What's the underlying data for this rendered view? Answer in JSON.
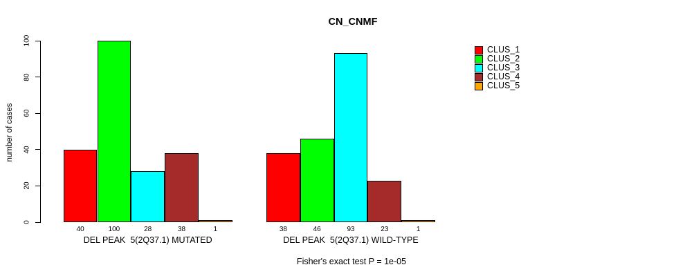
{
  "chart_data": {
    "type": "bar",
    "title": "CN_CNMF",
    "xlabel": "",
    "ylabel": "number of cases",
    "ylim": [
      0,
      100
    ],
    "yticks": [
      0,
      20,
      40,
      60,
      80,
      100
    ],
    "grid": false,
    "legend_position": "right-outside",
    "bar_value_labels": true,
    "categories": [
      "DEL PEAK  5(2Q37.1) MUTATED",
      "DEL PEAK  5(2Q37.1) WILD-TYPE"
    ],
    "series": [
      {
        "name": "CLUS_1",
        "color": "#FF0000",
        "values": [
          40,
          38
        ]
      },
      {
        "name": "CLUS_2",
        "color": "#00FF00",
        "values": [
          100,
          46
        ]
      },
      {
        "name": "CLUS_3",
        "color": "#00FFFF",
        "values": [
          28,
          93
        ]
      },
      {
        "name": "CLUS_4",
        "color": "#A52A2A",
        "values": [
          38,
          23
        ]
      },
      {
        "name": "CLUS_5",
        "color": "#FFA500",
        "values": [
          1,
          1
        ]
      }
    ],
    "annotation": "Fisher's exact test P = 1e-05"
  }
}
